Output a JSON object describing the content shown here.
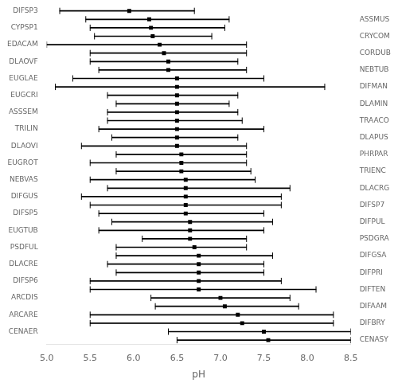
{
  "chart_data": {
    "type": "range",
    "orientation": "horizontal",
    "xlabel": "pH",
    "categories": [
      "DIFSP3",
      "ASSMUS",
      "CYPSP1",
      "CRYCOM",
      "EDACAM",
      "CORDUB",
      "DLAOVF",
      "NEBTUB",
      "EUGLAE",
      "DIFMAN",
      "EUGCRI",
      "DLAMIN",
      "ASSSEM",
      "TRAACO",
      "TRILIN",
      "DLAPUS",
      "DLAOVI",
      "PHRPAR",
      "EUGROT",
      "TRIENC",
      "NEBVAS",
      "DLACRG",
      "DIFGUS",
      "DIFSP7",
      "DIFSP5",
      "DIFPUL",
      "EUGTUB",
      "PSDGRA",
      "PSDFUL",
      "DIFGSA",
      "DLACRE",
      "DIFPRI",
      "DIFSP6",
      "DIFTEN",
      "ARCDIS",
      "DIFAAM",
      "ARCARE",
      "DIFBRY",
      "CENAER",
      "CENASY"
    ],
    "values": [
      5.95,
      6.18,
      6.2,
      6.22,
      6.3,
      6.35,
      6.4,
      6.4,
      6.5,
      6.5,
      6.5,
      6.5,
      6.5,
      6.5,
      6.5,
      6.5,
      6.5,
      6.55,
      6.55,
      6.55,
      6.6,
      6.6,
      6.6,
      6.6,
      6.6,
      6.65,
      6.65,
      6.65,
      6.7,
      6.75,
      6.75,
      6.75,
      6.75,
      6.75,
      7.0,
      7.05,
      7.2,
      7.25,
      7.5,
      7.55
    ],
    "lo": [
      5.15,
      5.45,
      5.5,
      5.55,
      5.0,
      5.5,
      5.5,
      5.6,
      5.3,
      5.1,
      5.7,
      5.8,
      5.7,
      5.7,
      5.6,
      5.75,
      5.4,
      5.8,
      5.5,
      5.8,
      5.5,
      5.7,
      5.4,
      5.5,
      5.6,
      5.75,
      5.6,
      6.1,
      5.8,
      5.8,
      5.7,
      5.8,
      5.5,
      5.5,
      6.2,
      6.25,
      5.5,
      5.5,
      6.4,
      6.5
    ],
    "hi": [
      6.7,
      7.1,
      7.05,
      6.9,
      7.3,
      7.3,
      7.2,
      7.3,
      7.5,
      8.2,
      7.2,
      7.1,
      7.2,
      7.25,
      7.5,
      7.2,
      7.3,
      7.3,
      7.3,
      7.35,
      7.4,
      7.8,
      7.7,
      7.7,
      7.5,
      7.6,
      7.5,
      7.3,
      7.3,
      7.6,
      7.5,
      7.5,
      7.7,
      8.1,
      7.8,
      7.9,
      8.3,
      8.3,
      8.5,
      8.5
    ],
    "xlim": [
      5.0,
      8.5
    ],
    "xticks": [
      {
        "value": 5.0,
        "label": "5.0"
      },
      5.5,
      {
        "value": 6.0,
        "label": "6.0"
      },
      6.5,
      {
        "value": 7.0,
        "label": "7.0"
      },
      7.5,
      {
        "value": 8.0,
        "label": "8.0"
      },
      8.5
    ],
    "color": "#000000",
    "marker": "square",
    "grid": false
  }
}
